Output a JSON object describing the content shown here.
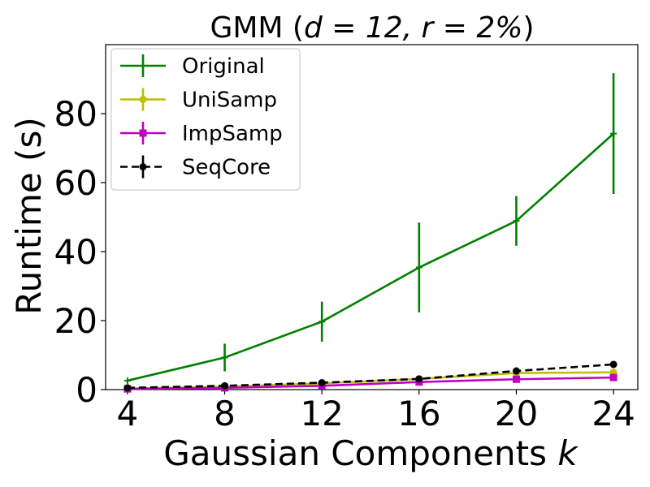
{
  "chart_data": {
    "type": "line",
    "title_main": "GMM (",
    "title_math": "d = 12, r = 2%",
    "title_close": ")",
    "xlabel_text": "Gaussian Components ",
    "xlabel_var": "k",
    "ylabel": "Runtime (s)",
    "x": [
      4,
      8,
      12,
      16,
      20,
      24
    ],
    "xticks": [
      4,
      8,
      12,
      16,
      20,
      24
    ],
    "yticks": [
      0,
      20,
      40,
      60,
      80
    ],
    "xlim": [
      3.1,
      25.0
    ],
    "ylim": [
      0,
      100
    ],
    "legend_position": "top-left",
    "series": [
      {
        "name": "Original",
        "color": "#008000",
        "marker": "plus",
        "linestyle": "solid",
        "values": [
          2.6,
          9.3,
          19.7,
          35.4,
          48.9,
          74.2
        ],
        "errors": [
          0.3,
          4.0,
          5.8,
          13.0,
          7.2,
          17.5
        ]
      },
      {
        "name": "UniSamp",
        "color": "#bfbf00",
        "marker": "circle",
        "linestyle": "solid",
        "values": [
          0.3,
          0.8,
          1.8,
          3.1,
          4.8,
          5.0
        ],
        "errors": [
          0.1,
          0.1,
          0.2,
          0.3,
          0.5,
          0.6
        ]
      },
      {
        "name": "ImpSamp",
        "color": "#bf00bf",
        "marker": "square",
        "linestyle": "solid",
        "values": [
          0.2,
          0.5,
          1.1,
          2.2,
          3.0,
          3.5
        ],
        "errors": [
          0.1,
          0.1,
          0.2,
          0.3,
          0.4,
          0.5
        ]
      },
      {
        "name": "SeqCore",
        "color": "#000000",
        "marker": "circle",
        "linestyle": "dashed",
        "values": [
          0.5,
          1.1,
          2.0,
          3.1,
          5.4,
          7.3
        ],
        "errors": [
          0.1,
          0.1,
          0.2,
          0.2,
          0.3,
          0.5
        ]
      }
    ]
  }
}
